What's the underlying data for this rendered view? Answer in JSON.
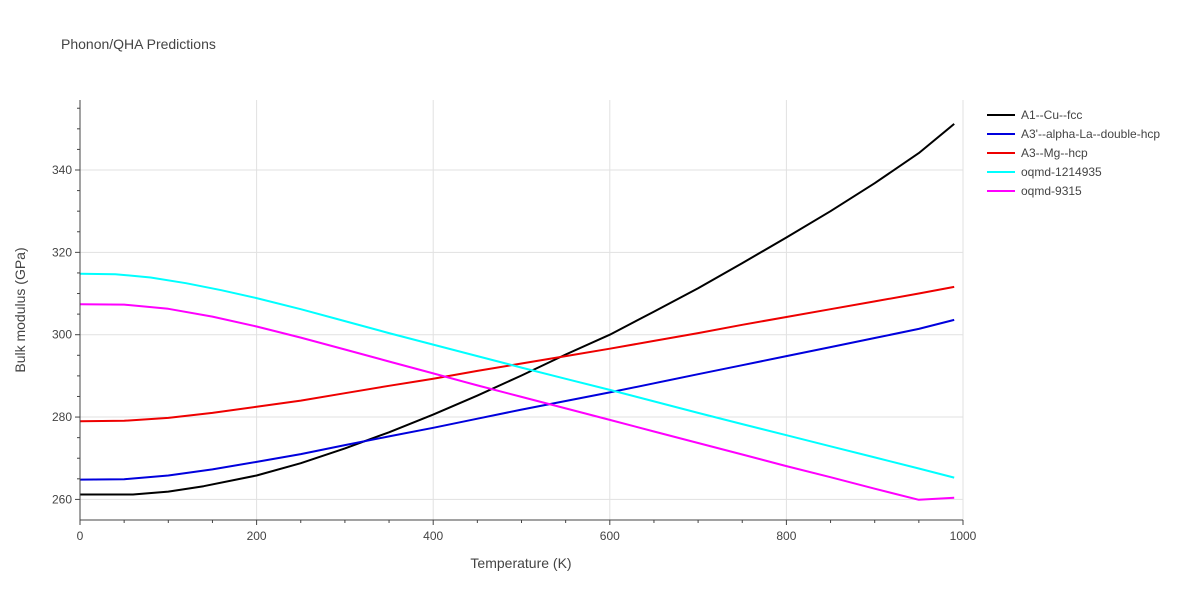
{
  "chart_data": {
    "type": "line",
    "title": "Phonon/QHA Predictions",
    "xlabel": "Temperature (K)",
    "ylabel": "Bulk modulus (GPa)",
    "xlim": [
      0,
      1000
    ],
    "ylim": [
      255,
      357
    ],
    "x_ticks": [
      0,
      200,
      400,
      600,
      800,
      1000
    ],
    "y_ticks": [
      260,
      280,
      300,
      320,
      340
    ],
    "grid": true,
    "legend_position": "top-right",
    "series": [
      {
        "name": "A1--Cu--fcc",
        "color": "#000000",
        "x": [
          0,
          30,
          60,
          100,
          140,
          200,
          250,
          300,
          350,
          400,
          450,
          500,
          550,
          600,
          650,
          700,
          750,
          800,
          850,
          900,
          950,
          990
        ],
        "y": [
          261.2,
          261.2,
          261.2,
          261.9,
          263.2,
          265.8,
          268.8,
          272.4,
          276.3,
          280.6,
          285.2,
          290.1,
          295.2,
          300.0,
          305.6,
          311.3,
          317.4,
          323.6,
          330.0,
          336.8,
          344.1,
          351.2
        ]
      },
      {
        "name": "A3'--alpha-La--double-hcp",
        "color": "#0000dd",
        "x": [
          0,
          50,
          100,
          150,
          200,
          250,
          300,
          350,
          400,
          450,
          500,
          550,
          600,
          650,
          700,
          750,
          800,
          850,
          900,
          950,
          990
        ],
        "y": [
          264.8,
          264.9,
          265.8,
          267.3,
          269.1,
          271.0,
          273.2,
          275.3,
          277.4,
          279.6,
          281.8,
          283.9,
          286.0,
          288.2,
          290.4,
          292.6,
          294.8,
          297.0,
          299.2,
          301.4,
          303.6
        ]
      },
      {
        "name": "A3--Mg--hcp",
        "color": "#ee0000",
        "x": [
          0,
          50,
          100,
          150,
          200,
          250,
          300,
          350,
          400,
          450,
          500,
          550,
          600,
          650,
          700,
          750,
          800,
          850,
          900,
          950,
          990
        ],
        "y": [
          279.0,
          279.1,
          279.8,
          281.0,
          282.5,
          284.0,
          285.8,
          287.6,
          289.3,
          291.2,
          293.0,
          294.8,
          296.6,
          298.5,
          300.4,
          302.4,
          304.3,
          306.2,
          308.1,
          310.0,
          311.6
        ]
      },
      {
        "name": "oqmd-1214935",
        "color": "#00ffff",
        "x": [
          0,
          40,
          80,
          120,
          160,
          200,
          250,
          300,
          350,
          400,
          450,
          500,
          550,
          600,
          650,
          700,
          750,
          800,
          850,
          900,
          950,
          990
        ],
        "y": [
          314.8,
          314.7,
          313.9,
          312.5,
          310.8,
          308.9,
          306.2,
          303.3,
          300.4,
          297.6,
          294.8,
          292.0,
          289.3,
          286.6,
          283.8,
          281.0,
          278.3,
          275.6,
          272.9,
          270.2,
          267.5,
          265.3
        ]
      },
      {
        "name": "oqmd-9315",
        "color": "#ff00ff",
        "x": [
          0,
          50,
          100,
          150,
          200,
          250,
          300,
          350,
          400,
          450,
          500,
          550,
          600,
          650,
          700,
          750,
          800,
          850,
          900,
          950,
          990
        ],
        "y": [
          307.4,
          307.3,
          306.3,
          304.4,
          302.0,
          299.3,
          296.4,
          293.5,
          290.6,
          287.7,
          284.9,
          282.1,
          279.3,
          276.5,
          273.7,
          270.9,
          268.1,
          265.4,
          262.6,
          259.9,
          260.4
        ]
      }
    ]
  }
}
